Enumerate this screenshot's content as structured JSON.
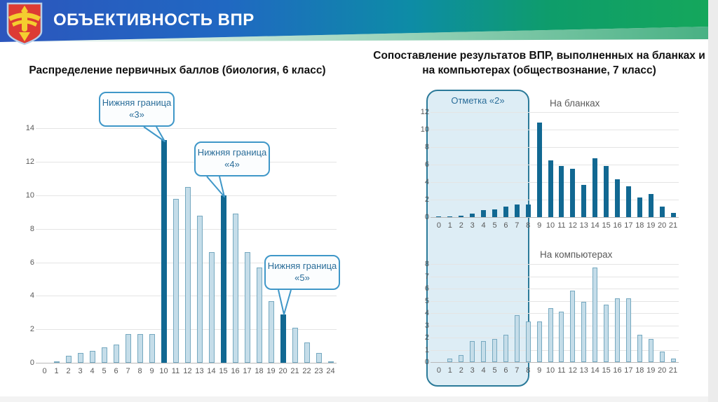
{
  "header": {
    "title": "ОБЪЕКТИВНОСТЬ ВПР",
    "logo": "komi-republic-coat-of-arms"
  },
  "left_panel": {
    "title": "Распределение первичных баллов (биология, 6 класс)"
  },
  "right_panel": {
    "title": "Сопоставление результатов ВПР, выполненных на бланках и на компьютерах (обществознание, 7 класс)"
  },
  "overlay": {
    "label": "Отметка «2»",
    "covers_categories": "0–8"
  },
  "colors": {
    "bar_dark": "#116892",
    "bar_light_fill": "#c5dde9",
    "bar_light_border": "#76a9c0",
    "gridline": "#e4e4e4",
    "axis_line": "#b9b9b9",
    "tick_text": "#595959",
    "subtitle_text": "#5a5a5a",
    "callout_border": "#3f97c8",
    "callout_text": "#2a6d99",
    "box_border": "#2b7a99",
    "box_fill": "#ddedf5",
    "header_gradient_start": "#2c56bd",
    "header_gradient_end": "#15a75c"
  },
  "chart_data": [
    {
      "id": "primary-scores",
      "type": "bar",
      "title": "Распределение первичных баллов (биология, 6 класс)",
      "xlabel": "",
      "ylabel": "",
      "categories": [
        0,
        1,
        2,
        3,
        4,
        5,
        6,
        7,
        8,
        9,
        10,
        11,
        12,
        13,
        14,
        15,
        16,
        17,
        18,
        19,
        20,
        21,
        22,
        23,
        24
      ],
      "values": [
        0,
        0.1,
        0.4,
        0.6,
        0.7,
        0.9,
        1.1,
        1.7,
        1.7,
        1.7,
        13.3,
        9.8,
        10.5,
        8.8,
        6.6,
        10.0,
        8.9,
        6.6,
        5.7,
        3.7,
        2.9,
        2.1,
        1.2,
        0.6,
        0.1
      ],
      "ylim": [
        0,
        14
      ],
      "yticks": [
        0,
        2,
        4,
        6,
        8,
        10,
        12,
        14
      ],
      "grid": true,
      "style": "light-with-highlights",
      "highlight_scores": [
        10,
        15,
        20
      ],
      "annotations": [
        {
          "text": "Нижняя граница «3»",
          "target_category": 10
        },
        {
          "text": "Нижняя граница «4»",
          "target_category": 15
        },
        {
          "text": "Нижняя граница «5»",
          "target_category": 20
        }
      ]
    },
    {
      "id": "on-blanks",
      "type": "bar",
      "title": "На бланках",
      "xlabel": "",
      "ylabel": "",
      "categories": [
        0,
        1,
        2,
        3,
        4,
        5,
        6,
        7,
        8,
        9,
        10,
        11,
        12,
        13,
        14,
        15,
        16,
        17,
        18,
        19,
        20,
        21
      ],
      "values": [
        0.05,
        0.1,
        0.15,
        0.4,
        0.8,
        0.9,
        1.2,
        1.4,
        1.4,
        10.8,
        6.5,
        5.8,
        5.5,
        3.7,
        6.7,
        5.8,
        4.3,
        3.5,
        2.2,
        2.6,
        1.2,
        0.5
      ],
      "ylim": [
        0,
        12
      ],
      "yticks": [
        0,
        2,
        4,
        6,
        8,
        10,
        12
      ],
      "grid": true,
      "style": "dark"
    },
    {
      "id": "on-computers",
      "type": "bar",
      "title": "На компьютерах",
      "xlabel": "",
      "ylabel": "",
      "categories": [
        0,
        1,
        2,
        3,
        4,
        5,
        6,
        7,
        8,
        9,
        10,
        11,
        12,
        13,
        14,
        15,
        16,
        17,
        18,
        19,
        20,
        21
      ],
      "values": [
        0,
        0.3,
        0.55,
        1.7,
        1.7,
        1.9,
        2.2,
        3.8,
        3.3,
        3.3,
        4.4,
        4.1,
        5.8,
        4.9,
        7.7,
        4.7,
        5.2,
        5.2,
        2.2,
        1.9,
        0.85,
        0.3
      ],
      "ylim": [
        0,
        8
      ],
      "yticks": [
        0,
        1,
        2,
        3,
        4,
        5,
        6,
        7,
        8
      ],
      "grid": true,
      "style": "light"
    }
  ]
}
